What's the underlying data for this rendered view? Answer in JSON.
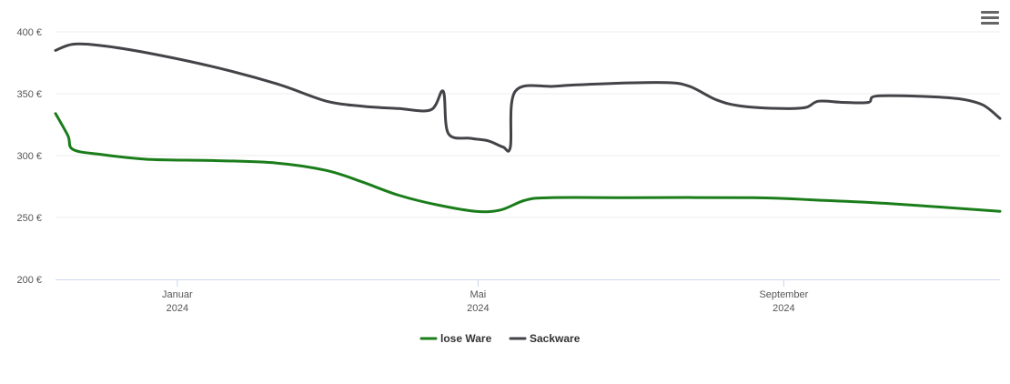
{
  "chart_data": {
    "type": "line",
    "title": "",
    "xlabel": "",
    "ylabel": "",
    "x_range": [
      "2023-11-13",
      "2024-11-27"
    ],
    "ylim": [
      200,
      400
    ],
    "y_ticks": [
      {
        "value": 200,
        "label": "200 €"
      },
      {
        "value": 250,
        "label": "250 €"
      },
      {
        "value": 300,
        "label": "300 €"
      },
      {
        "value": 350,
        "label": "350 €"
      },
      {
        "value": 400,
        "label": "400 €"
      }
    ],
    "x_ticks": [
      {
        "date": "2024-01-01",
        "label": "Januar",
        "sublabel": "2024"
      },
      {
        "date": "2024-05-01",
        "label": "Mai",
        "sublabel": "2024"
      },
      {
        "date": "2024-09-01",
        "label": "September",
        "sublabel": "2024"
      }
    ],
    "grid": true,
    "legend": "bottom-center",
    "series": [
      {
        "name": "lose Ware",
        "color": "#1a7d1a",
        "points": [
          [
            "2023-11-13",
            334
          ],
          [
            "2023-11-18",
            316
          ],
          [
            "2023-11-20",
            305
          ],
          [
            "2023-12-01",
            301
          ],
          [
            "2023-12-20",
            297
          ],
          [
            "2024-01-15",
            296
          ],
          [
            "2024-02-10",
            294
          ],
          [
            "2024-03-01",
            288
          ],
          [
            "2024-03-15",
            279
          ],
          [
            "2024-03-30",
            268
          ],
          [
            "2024-04-15",
            260
          ],
          [
            "2024-04-30",
            255
          ],
          [
            "2024-05-10",
            256
          ],
          [
            "2024-05-20",
            264
          ],
          [
            "2024-05-30",
            266
          ],
          [
            "2024-07-01",
            266
          ],
          [
            "2024-08-20",
            266
          ],
          [
            "2024-09-15",
            264
          ],
          [
            "2024-10-15",
            261
          ],
          [
            "2024-11-27",
            255
          ]
        ]
      },
      {
        "name": "Sackware",
        "color": "#434348",
        "points": [
          [
            "2023-11-13",
            385
          ],
          [
            "2023-11-20",
            390
          ],
          [
            "2023-12-01",
            389
          ],
          [
            "2023-12-20",
            383
          ],
          [
            "2024-01-15",
            372
          ],
          [
            "2024-02-10",
            358
          ],
          [
            "2024-03-01",
            344
          ],
          [
            "2024-03-15",
            340
          ],
          [
            "2024-03-30",
            338
          ],
          [
            "2024-04-12",
            337
          ],
          [
            "2024-04-17",
            352
          ],
          [
            "2024-04-19",
            318
          ],
          [
            "2024-04-28",
            314
          ],
          [
            "2024-05-05",
            312
          ],
          [
            "2024-05-11",
            307
          ],
          [
            "2024-05-14",
            307
          ],
          [
            "2024-05-16",
            352
          ],
          [
            "2024-06-01",
            356
          ],
          [
            "2024-06-20",
            358
          ],
          [
            "2024-07-15",
            359
          ],
          [
            "2024-07-25",
            356
          ],
          [
            "2024-08-05",
            345
          ],
          [
            "2024-08-15",
            340
          ],
          [
            "2024-09-01",
            338
          ],
          [
            "2024-09-10",
            339
          ],
          [
            "2024-09-15",
            344
          ],
          [
            "2024-09-25",
            343
          ],
          [
            "2024-10-05",
            343
          ],
          [
            "2024-10-08",
            348
          ],
          [
            "2024-10-25",
            348
          ],
          [
            "2024-11-10",
            346
          ],
          [
            "2024-11-20",
            341
          ],
          [
            "2024-11-27",
            330
          ]
        ]
      }
    ]
  },
  "toolbar": {
    "menu_icon": "hamburger-menu-icon"
  }
}
